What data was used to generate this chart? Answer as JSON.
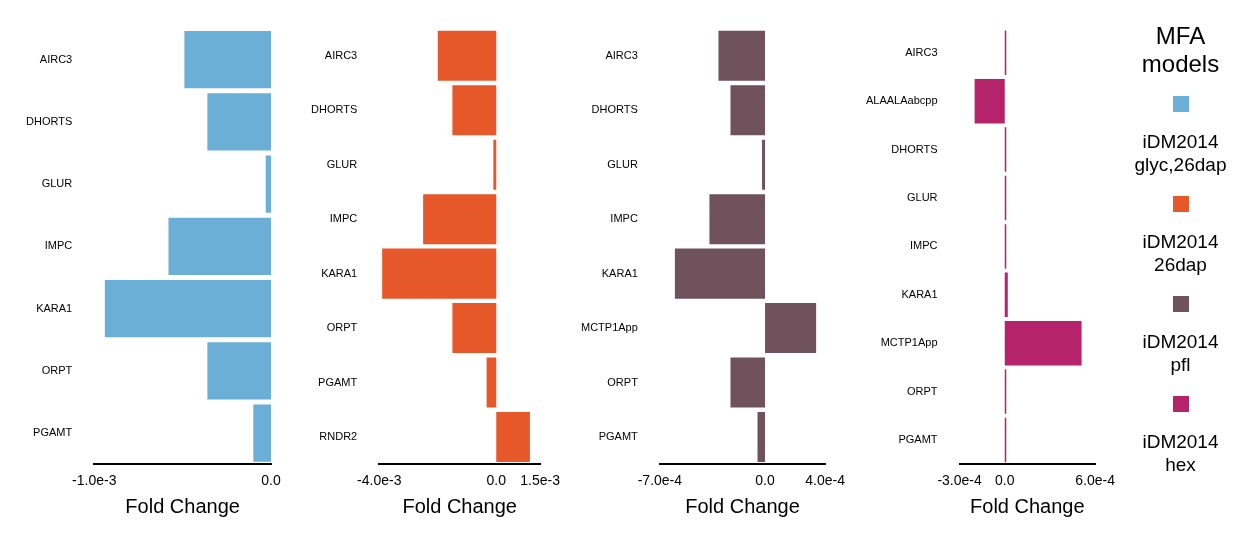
{
  "chart_data": [
    {
      "type": "bar",
      "orientation": "horizontal",
      "xlabel": "Fold Change",
      "categories": [
        "AIRC3",
        "DHORTS",
        "GLUR",
        "IMPC",
        "KARA1",
        "ORPT",
        "PGAMT"
      ],
      "series": [
        {
          "name": "iDM2014 glyc,26dap",
          "color": "#6baed6",
          "values": [
            -0.00049,
            -0.00036,
            -3e-05,
            -0.00058,
            -0.00094,
            -0.00036,
            -0.0001
          ]
        }
      ],
      "xlim": [
        -0.001,
        0
      ],
      "xticks": [
        {
          "value": -0.001,
          "label": "-1.0e-3"
        },
        {
          "value": 0,
          "label": "0.0"
        }
      ],
      "grid": false
    },
    {
      "type": "bar",
      "orientation": "horizontal",
      "xlabel": "Fold Change",
      "categories": [
        "AIRC3",
        "DHORTS",
        "GLUR",
        "IMPC",
        "KARA1",
        "ORPT",
        "PGAMT",
        "RNDR2"
      ],
      "series": [
        {
          "name": "iDM2014 26dap",
          "color": "#e6572a",
          "values": [
            -0.002,
            -0.0015,
            -0.0001,
            -0.0025,
            -0.0039,
            -0.0015,
            -0.00033,
            0.00115
          ]
        }
      ],
      "xlim": [
        -0.004,
        0.0015
      ],
      "xticks": [
        {
          "value": -0.004,
          "label": "-4.0e-3"
        },
        {
          "value": 0,
          "label": "0.0"
        },
        {
          "value": 0.0015,
          "label": "1.5e-3"
        }
      ],
      "grid": false
    },
    {
      "type": "bar",
      "orientation": "horizontal",
      "xlabel": "Fold Change",
      "categories": [
        "AIRC3",
        "DHORTS",
        "GLUR",
        "IMPC",
        "KARA1",
        "MCTP1App",
        "ORPT",
        "PGAMT"
      ],
      "series": [
        {
          "name": "iDM2014 pfl",
          "color": "#6f525b",
          "values": [
            -0.00031,
            -0.00023,
            -2e-05,
            -0.00037,
            -0.0006,
            0.00034,
            -0.00023,
            -5e-05
          ]
        }
      ],
      "xlim": [
        -0.0007,
        0.0004
      ],
      "xticks": [
        {
          "value": -0.0007,
          "label": "-7.0e-4"
        },
        {
          "value": 0,
          "label": "0.0"
        },
        {
          "value": 0.0004,
          "label": "4.0e-4"
        }
      ],
      "grid": false
    },
    {
      "type": "bar",
      "orientation": "horizontal",
      "xlabel": "Fold Change",
      "categories": [
        "AIRC3",
        "ALAALAabcpp",
        "DHORTS",
        "GLUR",
        "IMPC",
        "KARA1",
        "MCTP1App",
        "ORPT",
        "PGAMT"
      ],
      "series": [
        {
          "name": "iDM2014 hex",
          "color": "#b5236a",
          "values": [
            1e-05,
            -0.0002,
            1e-05,
            1e-05,
            1e-05,
            2e-05,
            0.00051,
            1e-05,
            1e-05
          ]
        }
      ],
      "xlim": [
        -0.0003,
        0.0006
      ],
      "xticks": [
        {
          "value": -0.0003,
          "label": "-3.0e-4"
        },
        {
          "value": 0,
          "label": "0.0"
        },
        {
          "value": 0.0006,
          "label": "6.0e-4"
        }
      ],
      "grid": false,
      "legend": "right",
      "legend_title": "MFA models"
    }
  ]
}
